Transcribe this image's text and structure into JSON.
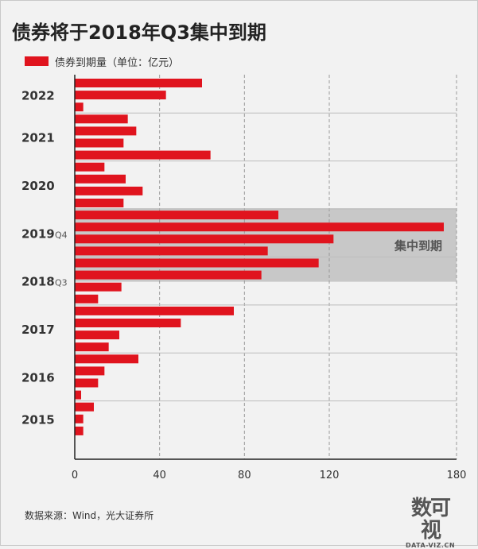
{
  "title": "债券将于2018年Q3集中到期",
  "legend_label": "债券到期量（单位：亿元）",
  "source": "数据来源：Wind，光大证券所",
  "highlight_label": "集中到期",
  "brand": {
    "mark": "数可视",
    "sub": "DATA-VIZ.CN"
  },
  "colors": {
    "bar": "#e0141e",
    "highlight": "#c8c8c8",
    "grid": "#999999",
    "axis": "#222222",
    "background": "#f2f2f2"
  },
  "chart_data": {
    "type": "bar",
    "orientation": "horizontal",
    "title": "债券将于2018年Q3集中到期",
    "xlabel": "",
    "ylabel": "",
    "xlim": [
      0,
      180
    ],
    "x_ticks": [
      0,
      40,
      80,
      120,
      180
    ],
    "grid": "vertical dashed",
    "legend": "top-left",
    "series": [
      {
        "name": "债券到期量（单位：亿元）",
        "values": [
          60,
          43,
          4,
          25,
          29,
          23,
          64,
          14,
          24,
          32,
          23,
          96,
          174,
          122,
          91,
          115,
          88,
          22,
          11,
          75,
          50,
          21,
          16,
          30,
          14,
          11,
          3,
          9,
          4,
          4
        ]
      }
    ],
    "groups": [
      {
        "label": "2022",
        "bars": [
          0,
          1,
          2
        ]
      },
      {
        "label": "2021",
        "bars": [
          3,
          4,
          5,
          6
        ]
      },
      {
        "label": "2020",
        "bars": [
          7,
          8,
          9,
          10
        ]
      },
      {
        "label": "2019",
        "sub": "Q4",
        "bars": [
          11,
          12,
          13,
          14
        ]
      },
      {
        "label": "2018",
        "sub": "Q3",
        "bars": [
          15,
          16,
          17,
          18
        ]
      },
      {
        "label": "2017",
        "bars": [
          19,
          20,
          21,
          22
        ]
      },
      {
        "label": "2016",
        "bars": [
          23,
          24,
          25,
          26
        ]
      },
      {
        "label": "2015",
        "bars": [
          27,
          28,
          29
        ]
      }
    ],
    "highlight_range": {
      "from_bar": 11,
      "to_bar": 16,
      "label": "集中到期"
    }
  }
}
